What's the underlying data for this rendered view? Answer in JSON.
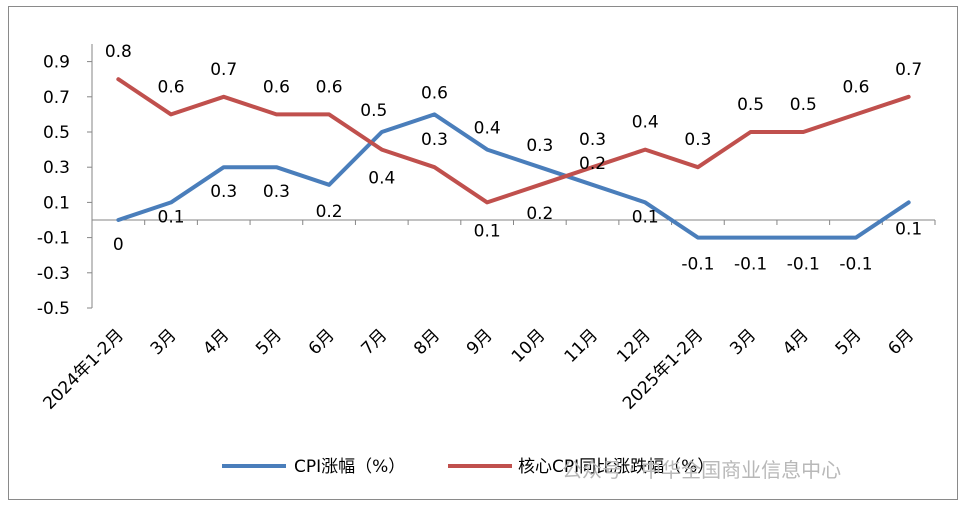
{
  "chart_data": {
    "type": "line",
    "categories": [
      "2024年1-2月",
      "3月",
      "4月",
      "5月",
      "6月",
      "7月",
      "8月",
      "9月",
      "10月",
      "11月",
      "12月",
      "2025年1-2月",
      "3月",
      "4月",
      "5月",
      "6月"
    ],
    "series": [
      {
        "name": "CPI涨幅（%）",
        "color": "#4a7ebb",
        "values": [
          0,
          0.1,
          0.3,
          0.3,
          0.2,
          0.5,
          0.6,
          0.4,
          0.3,
          0.2,
          0.1,
          -0.1,
          -0.1,
          -0.1,
          -0.1,
          0.1
        ],
        "labels": [
          "0",
          "0.1",
          "0.3",
          "0.3",
          "0.2",
          "0.5",
          "0.6",
          "0.4",
          "0.3",
          "0.2",
          "0.1",
          "-0.1",
          "-0.1",
          "-0.1",
          "-0.1",
          "0.1"
        ]
      },
      {
        "name": "核心CPI同比涨跌幅（%）",
        "color": "#c0504d",
        "values": [
          0.8,
          0.6,
          0.7,
          0.6,
          0.6,
          0.4,
          0.3,
          0.1,
          0.2,
          0.3,
          0.4,
          0.3,
          0.5,
          0.5,
          0.6,
          0.7
        ],
        "labels": [
          "0.8",
          "0.6",
          "0.7",
          "0.6",
          "0.6",
          "0.4",
          "0.3",
          "0.1",
          "0.2",
          "0.3",
          "0.4",
          "0.3",
          "0.5",
          "0.5",
          "0.6",
          "0.7"
        ]
      }
    ],
    "yticks": [
      "0.9",
      "0.7",
      "0.5",
      "0.3",
      "0.1",
      "-0.1",
      "-0.3",
      "-0.5"
    ],
    "ylim": [
      -0.5,
      0.9
    ],
    "grid": false,
    "legend_position": "bottom",
    "title": "",
    "xlabel": "",
    "ylabel": ""
  },
  "watermark": "公众号 · 中华全国商业信息中心"
}
